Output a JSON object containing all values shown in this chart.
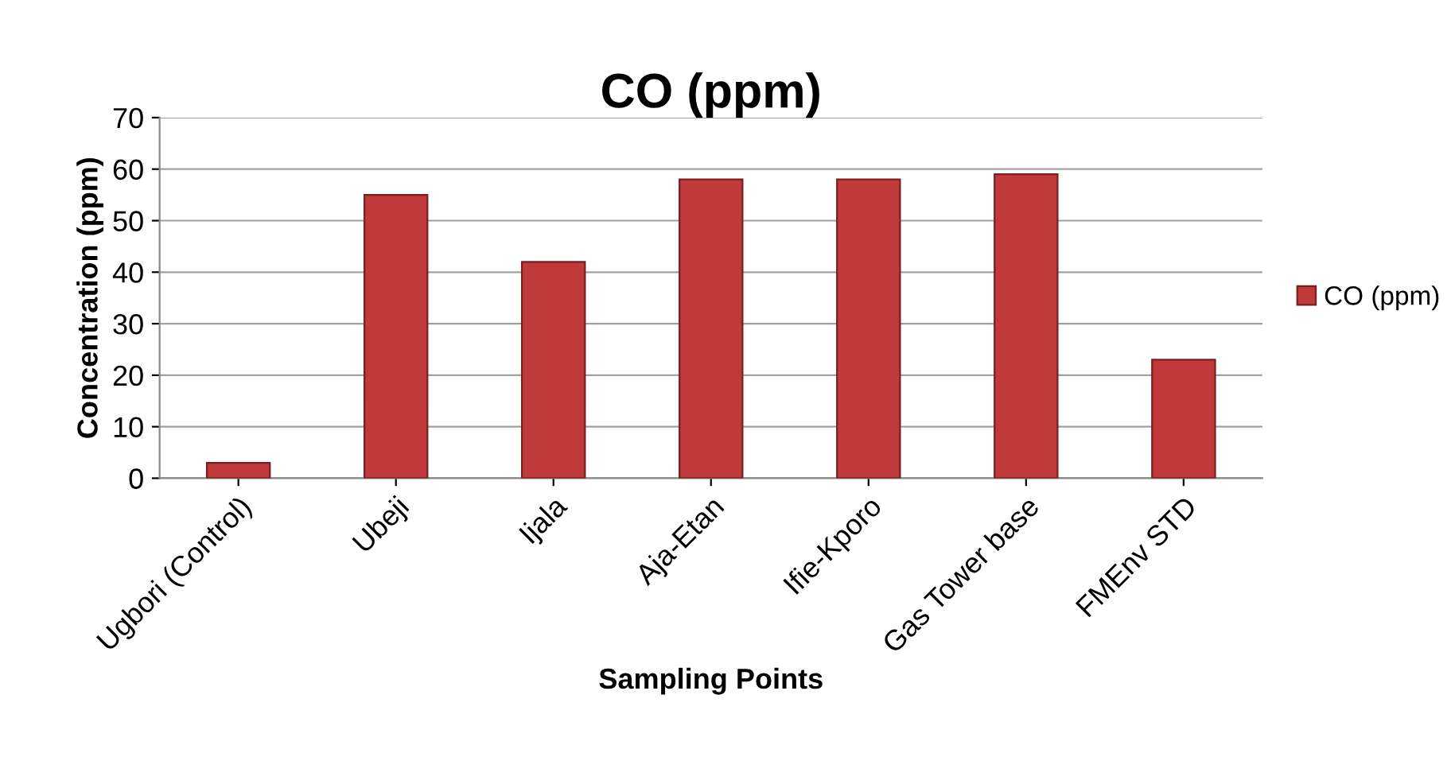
{
  "chart_data": {
    "type": "bar",
    "title": "CO (ppm)",
    "xlabel": "Sampling Points",
    "ylabel": "Concentration (ppm)",
    "categories": [
      "Ugbori (Control)",
      "Ubeji",
      "Ijala",
      "Aja-Etan",
      "Ifie-Kporo",
      "Gas Tower base",
      "FMEnv STD"
    ],
    "series": [
      {
        "name": "CO (ppm)",
        "color": "#c0393b",
        "values": [
          3,
          55,
          42,
          58,
          58,
          59,
          23
        ]
      }
    ],
    "ylim": [
      0,
      70
    ],
    "yticks": [
      0,
      10,
      20,
      30,
      40,
      50,
      60,
      70
    ],
    "grid": "y",
    "legend": "right"
  }
}
